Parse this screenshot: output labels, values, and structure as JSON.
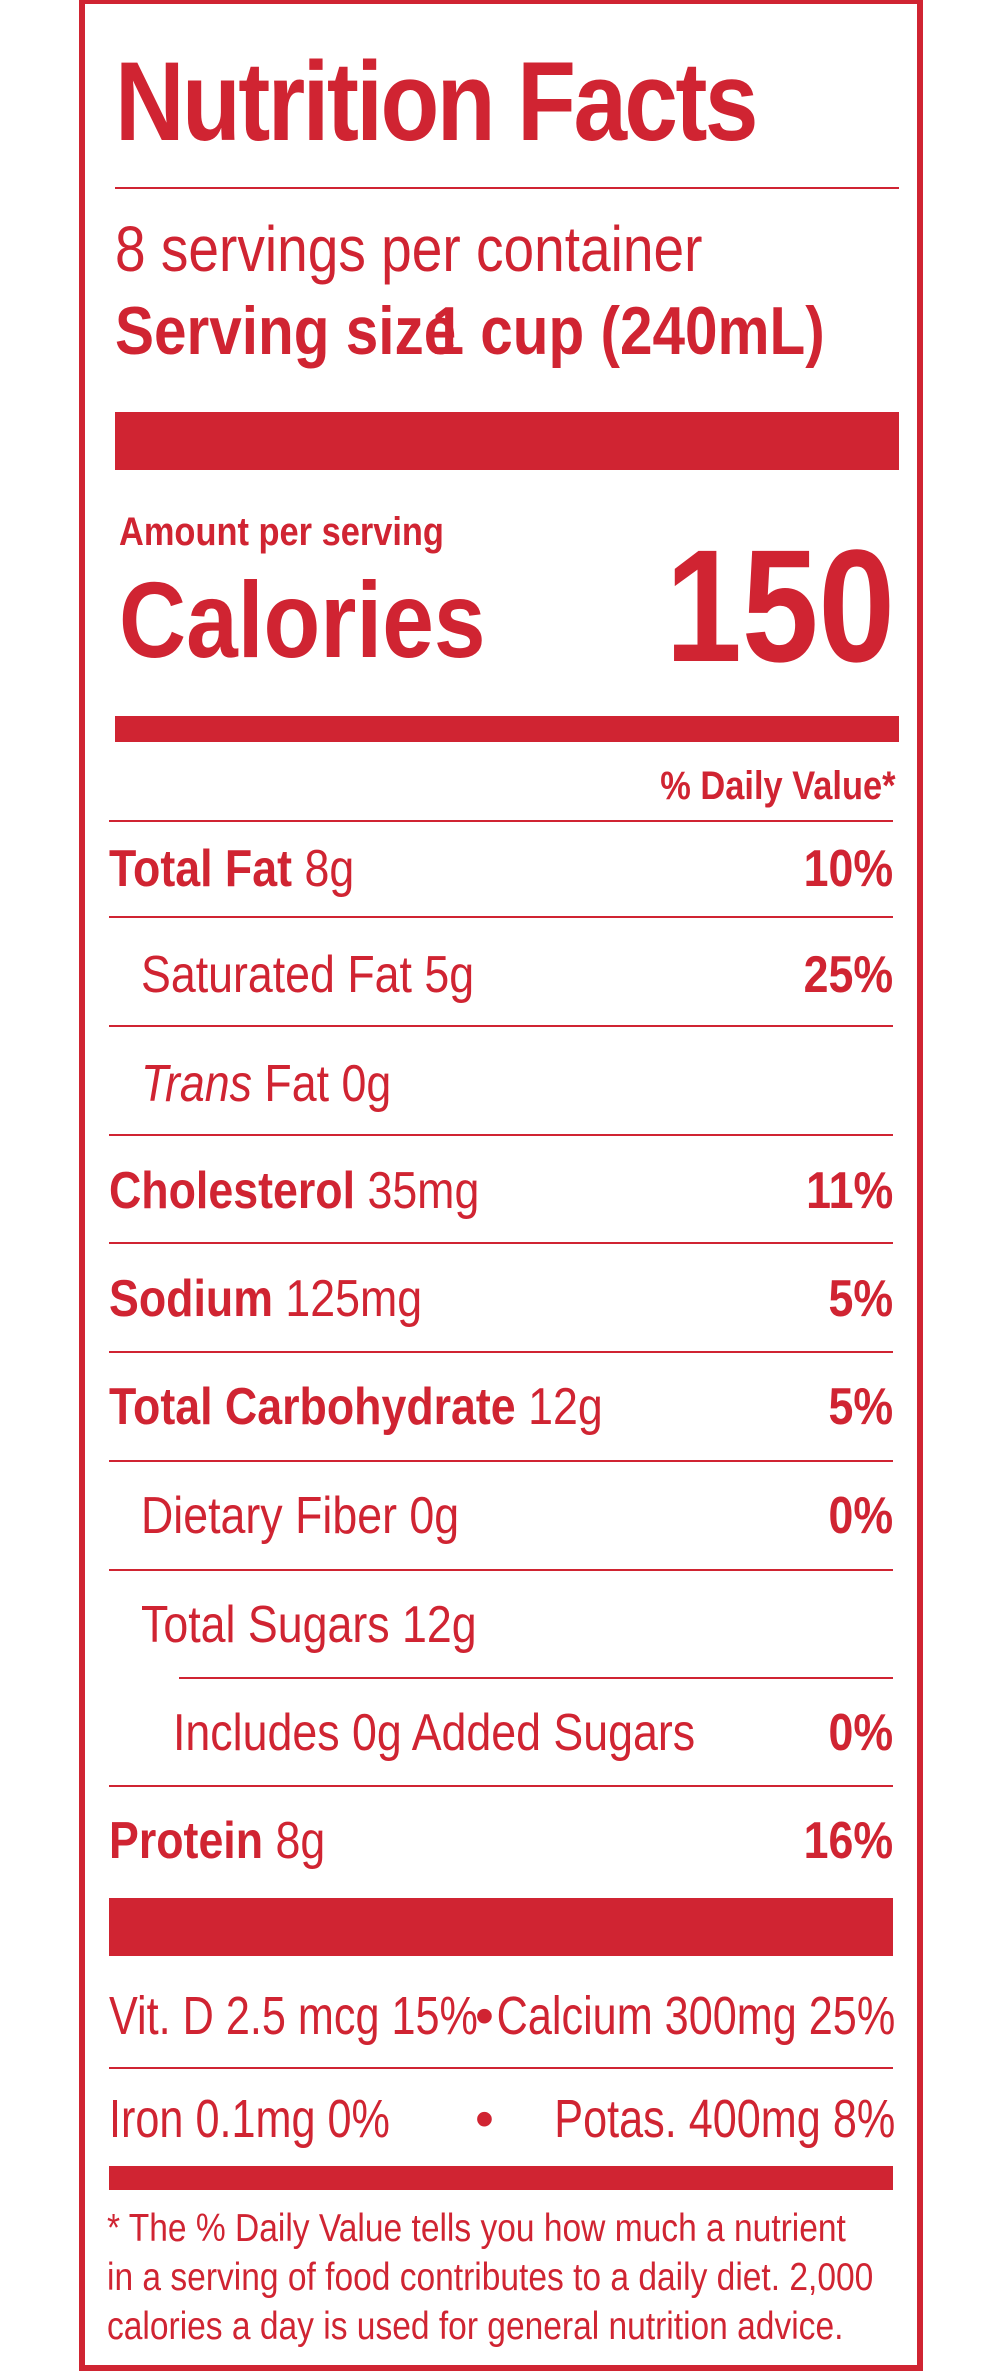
{
  "label": {
    "title": "Nutrition Facts",
    "servings_per_container": "8 servings per container",
    "serving_size_label": "Serving size",
    "serving_size_value": "1 cup (240mL)",
    "amount_per_serving": "Amount per serving",
    "calories_label": "Calories",
    "calories_value": "150",
    "daily_value_header": "% Daily Value*",
    "nutrients": [
      {
        "name": "Total Fat",
        "amount": "8g",
        "dv": "10%"
      },
      {
        "name": "Saturated Fat",
        "amount": "5g",
        "dv": "25%"
      },
      {
        "name": "Trans",
        "amount": "Fat 0g",
        "dv": ""
      },
      {
        "name": "Cholesterol",
        "amount": "35mg",
        "dv": "11%"
      },
      {
        "name": "Sodium",
        "amount": "125mg",
        "dv": "5%"
      },
      {
        "name": "Total Carbohydrate",
        "amount": "12g",
        "dv": "5%"
      },
      {
        "name": "Dietary Fiber",
        "amount": "0g",
        "dv": "0%"
      },
      {
        "name": "Total Sugars",
        "amount": "12g",
        "dv": ""
      },
      {
        "name": "Includes 0g Added Sugars",
        "amount": "",
        "dv": "0%"
      },
      {
        "name": "Protein",
        "amount": "8g",
        "dv": "16%"
      }
    ],
    "vitamins": [
      {
        "left": "Vit. D 2.5 mcg 15%",
        "right": "Calcium 300mg 25%"
      },
      {
        "left": "Iron 0.1mg 0%",
        "right": "Potas. 400mg 8%"
      }
    ],
    "bullet": "•",
    "footnote": "* The % Daily Value tells you how much a nutrient in a serving of food contributes to a daily diet. 2,000 calories a day is used for general nutrition advice."
  },
  "colors": {
    "ink": "#d02432",
    "background": "#ffffff"
  }
}
